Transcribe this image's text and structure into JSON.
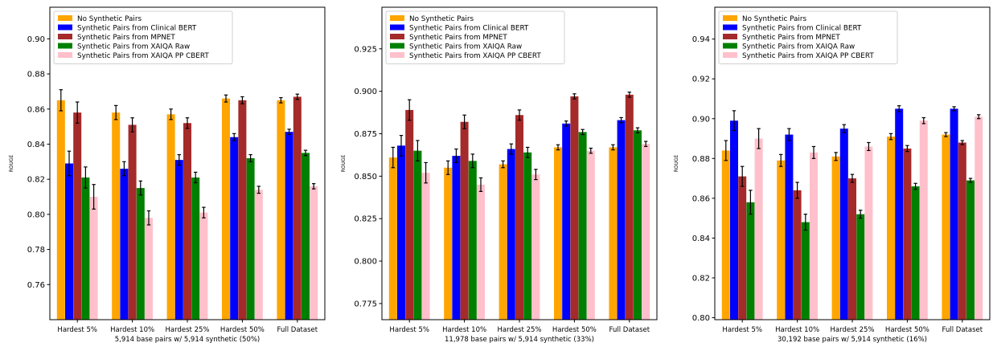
{
  "chart_data": [
    {
      "type": "bar",
      "categories": [
        "Hardest 5%",
        "Hardest 10%",
        "Hardest 25%",
        "Hardest 50%",
        "Full Dataset"
      ],
      "xlabel": "5,914 base pairs w/ 5,914 synthetic (50%)",
      "ylabel": "ROUGE",
      "ylim": [
        0.74,
        0.918
      ],
      "yticks": [
        0.76,
        0.78,
        0.8,
        0.82,
        0.84,
        0.86,
        0.88,
        0.9
      ],
      "ytick_labels": [
        "0.76",
        "0.78",
        "0.80",
        "0.82",
        "0.84",
        "0.86",
        "0.88",
        "0.90"
      ],
      "legend_position": "top-left",
      "series": [
        {
          "name": "No Synthetic Pairs",
          "color": "#FFA500",
          "values": [
            0.865,
            0.858,
            0.857,
            0.866,
            0.865
          ],
          "errors": [
            0.006,
            0.004,
            0.003,
            0.002,
            0.0015
          ]
        },
        {
          "name": "Synthetic Pairs from Clinical BERT",
          "color": "#0000FF",
          "values": [
            0.829,
            0.826,
            0.831,
            0.844,
            0.847
          ],
          "errors": [
            0.007,
            0.004,
            0.003,
            0.002,
            0.0015
          ]
        },
        {
          "name": "Synthetic Pairs from MPNET",
          "color": "#A52A2A",
          "values": [
            0.858,
            0.851,
            0.852,
            0.865,
            0.867
          ],
          "errors": [
            0.006,
            0.004,
            0.003,
            0.002,
            0.0015
          ]
        },
        {
          "name": "Synthetic Pairs from XAIQA Raw",
          "color": "#008000",
          "values": [
            0.821,
            0.815,
            0.821,
            0.832,
            0.835
          ],
          "errors": [
            0.006,
            0.004,
            0.003,
            0.002,
            0.0015
          ]
        },
        {
          "name": "Synthetic Pairs from XAIQA PP CBERT",
          "color": "#FFC0CB",
          "values": [
            0.81,
            0.798,
            0.801,
            0.814,
            0.816
          ],
          "errors": [
            0.007,
            0.004,
            0.003,
            0.002,
            0.0015
          ]
        }
      ]
    },
    {
      "type": "bar",
      "categories": [
        "Hardest 5%",
        "Hardest 10%",
        "Hardest 25%",
        "Hardest 50%",
        "Full Dataset"
      ],
      "xlabel": "11,978 base pairs w/ 5,914 synthetic (33%)",
      "ylabel": "ROUGE",
      "ylim": [
        0.7655,
        0.9495
      ],
      "yticks": [
        0.775,
        0.8,
        0.825,
        0.85,
        0.875,
        0.9,
        0.925
      ],
      "ytick_labels": [
        "0.775",
        "0.800",
        "0.825",
        "0.850",
        "0.875",
        "0.900",
        "0.925"
      ],
      "legend_position": "top-left",
      "series": [
        {
          "name": "No Synthetic Pairs",
          "color": "#FFA500",
          "values": [
            0.861,
            0.855,
            0.857,
            0.867,
            0.867
          ],
          "errors": [
            0.006,
            0.004,
            0.002,
            0.0015,
            0.0015
          ]
        },
        {
          "name": "Synthetic Pairs from Clinical BERT",
          "color": "#0000FF",
          "values": [
            0.868,
            0.862,
            0.866,
            0.881,
            0.883
          ],
          "errors": [
            0.006,
            0.004,
            0.003,
            0.0015,
            0.0015
          ]
        },
        {
          "name": "Synthetic Pairs from MPNET",
          "color": "#A52A2A",
          "values": [
            0.889,
            0.882,
            0.886,
            0.897,
            0.898
          ],
          "errors": [
            0.006,
            0.004,
            0.003,
            0.0015,
            0.0015
          ]
        },
        {
          "name": "Synthetic Pairs from XAIQA Raw",
          "color": "#008000",
          "values": [
            0.865,
            0.859,
            0.864,
            0.876,
            0.877
          ],
          "errors": [
            0.006,
            0.004,
            0.003,
            0.0015,
            0.0015
          ]
        },
        {
          "name": "Synthetic Pairs from XAIQA PP CBERT",
          "color": "#FFC0CB",
          "values": [
            0.852,
            0.845,
            0.851,
            0.865,
            0.869
          ],
          "errors": [
            0.006,
            0.004,
            0.003,
            0.0015,
            0.0015
          ]
        }
      ]
    },
    {
      "type": "bar",
      "categories": [
        "Hardest 5%",
        "Hardest 10%",
        "Hardest 25%",
        "Hardest 50%",
        "Full Dataset"
      ],
      "xlabel": "30,192 base pairs w/ 5,914 synthetic (16%)",
      "ylabel": "ROUGE",
      "ylim": [
        0.799,
        0.956
      ],
      "yticks": [
        0.8,
        0.82,
        0.84,
        0.86,
        0.88,
        0.9,
        0.92,
        0.94
      ],
      "ytick_labels": [
        "0.80",
        "0.82",
        "0.84",
        "0.86",
        "0.88",
        "0.90",
        "0.92",
        "0.94"
      ],
      "legend_position": "top-left",
      "series": [
        {
          "name": "No Synthetic Pairs",
          "color": "#FFA500",
          "values": [
            0.884,
            0.879,
            0.881,
            0.891,
            0.892
          ],
          "errors": [
            0.005,
            0.003,
            0.002,
            0.0015,
            0.001
          ]
        },
        {
          "name": "Synthetic Pairs from Clinical BERT",
          "color": "#0000FF",
          "values": [
            0.899,
            0.892,
            0.895,
            0.905,
            0.905
          ],
          "errors": [
            0.005,
            0.003,
            0.002,
            0.0015,
            0.001
          ]
        },
        {
          "name": "Synthetic Pairs from MPNET",
          "color": "#A52A2A",
          "values": [
            0.871,
            0.864,
            0.87,
            0.885,
            0.888
          ],
          "errors": [
            0.005,
            0.004,
            0.002,
            0.0015,
            0.001
          ]
        },
        {
          "name": "Synthetic Pairs from XAIQA Raw",
          "color": "#008000",
          "values": [
            0.858,
            0.848,
            0.852,
            0.866,
            0.869
          ],
          "errors": [
            0.006,
            0.004,
            0.002,
            0.0015,
            0.001
          ]
        },
        {
          "name": "Synthetic Pairs from XAIQA PP CBERT",
          "color": "#FFC0CB",
          "values": [
            0.89,
            0.883,
            0.886,
            0.899,
            0.901
          ],
          "errors": [
            0.005,
            0.003,
            0.002,
            0.0015,
            0.001
          ]
        }
      ]
    }
  ]
}
